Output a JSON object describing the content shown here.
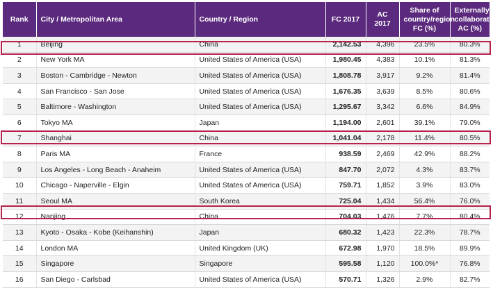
{
  "columns": {
    "rank": "Rank",
    "city": "City / Metropolitan Area",
    "country": "Country / Region",
    "fc": "FC 2017",
    "ac": "AC 2017",
    "share": "Share of country/region FC (%)",
    "collab": "Externally collaborative AC (%)"
  },
  "rows": [
    {
      "rank": "1",
      "city": "Beijing",
      "country": "China",
      "fc": "2,142.53",
      "ac": "4,396",
      "share": "23.5%",
      "collab": "80.3%"
    },
    {
      "rank": "2",
      "city": "New York MA",
      "country": "United States of America (USA)",
      "fc": "1,980.45",
      "ac": "4,383",
      "share": "10.1%",
      "collab": "81.3%"
    },
    {
      "rank": "3",
      "city": "Boston - Cambridge - Newton",
      "country": "United States of America (USA)",
      "fc": "1,808.78",
      "ac": "3,917",
      "share": "9.2%",
      "collab": "81.4%"
    },
    {
      "rank": "4",
      "city": "San Francisco - San Jose",
      "country": "United States of America (USA)",
      "fc": "1,676.35",
      "ac": "3,639",
      "share": "8.5%",
      "collab": "80.6%"
    },
    {
      "rank": "5",
      "city": "Baltimore - Washington",
      "country": "United States of America (USA)",
      "fc": "1,295.67",
      "ac": "3,342",
      "share": "6.6%",
      "collab": "84.9%"
    },
    {
      "rank": "6",
      "city": "Tokyo MA",
      "country": "Japan",
      "fc": "1,194.00",
      "ac": "2,601",
      "share": "39.1%",
      "collab": "79.0%"
    },
    {
      "rank": "7",
      "city": "Shanghai",
      "country": "China",
      "fc": "1,041.04",
      "ac": "2,178",
      "share": "11.4%",
      "collab": "80.5%"
    },
    {
      "rank": "8",
      "city": "Paris MA",
      "country": "France",
      "fc": "938.59",
      "ac": "2,469",
      "share": "42.9%",
      "collab": "88.2%"
    },
    {
      "rank": "9",
      "city": "Los Angeles - Long Beach - Anaheim",
      "country": "United States of America (USA)",
      "fc": "847.70",
      "ac": "2,072",
      "share": "4.3%",
      "collab": "83.7%"
    },
    {
      "rank": "10",
      "city": "Chicago - Naperville - Elgin",
      "country": "United States of America (USA)",
      "fc": "759.71",
      "ac": "1,852",
      "share": "3.9%",
      "collab": "83.0%"
    },
    {
      "rank": "11",
      "city": "Seoul MA",
      "country": "South Korea",
      "fc": "725.04",
      "ac": "1,434",
      "share": "56.4%",
      "collab": "76.0%"
    },
    {
      "rank": "12",
      "city": "Nanjing",
      "country": "China",
      "fc": "704.03",
      "ac": "1,476",
      "share": "7.7%",
      "collab": "80.4%"
    },
    {
      "rank": "13",
      "city": "Kyoto - Osaka - Kobe (Keihanshin)",
      "country": "Japan",
      "fc": "680.32",
      "ac": "1,423",
      "share": "22.3%",
      "collab": "78.7%"
    },
    {
      "rank": "14",
      "city": "London MA",
      "country": "United Kingdom (UK)",
      "fc": "672.98",
      "ac": "1,970",
      "share": "18.5%",
      "collab": "89.9%"
    },
    {
      "rank": "15",
      "city": "Singapore",
      "country": "Singapore",
      "fc": "595.58",
      "ac": "1,120",
      "share": "100.0%*",
      "collab": "76.8%"
    },
    {
      "rank": "16",
      "city": "San Diego - Carlsbad",
      "country": "United States of America (USA)",
      "fc": "570.71",
      "ac": "1,326",
      "share": "2.9%",
      "collab": "82.7%"
    }
  ],
  "highlight_color": "#b5224c",
  "header_color": "#5b2a7e"
}
